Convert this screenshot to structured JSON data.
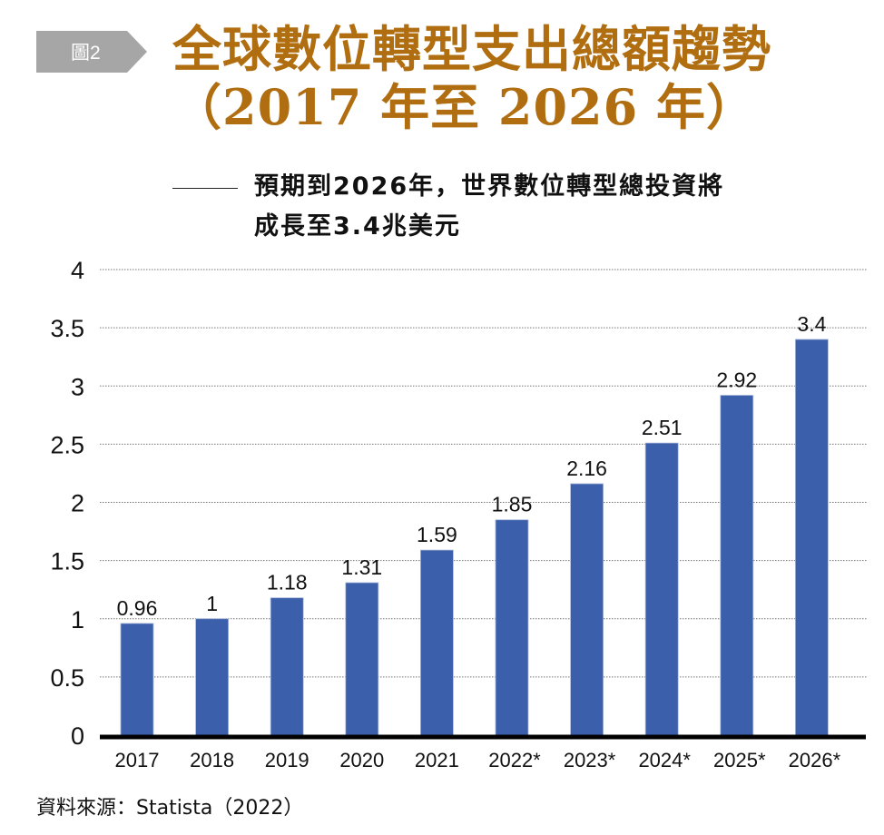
{
  "figure_tag": "圖2",
  "title": {
    "line1": "全球數位轉型支出總額趨勢",
    "line2": "（2017 年至 2026 年）"
  },
  "subtitle": {
    "line1": "預期到2026年，世界數位轉型總投資將",
    "line2": "成長至3.4兆美元"
  },
  "source": "資料來源：Statista（2022）",
  "colors": {
    "title": "#b06e10",
    "bar": "#3b5faa",
    "tag_bg": "#a6a6a6",
    "axis": "#000000"
  },
  "chart_data": {
    "type": "bar",
    "title": "全球數位轉型支出總額趨勢（2017 年至 2026 年）",
    "xlabel": "",
    "ylabel": "",
    "categories": [
      "2017",
      "2018",
      "2019",
      "2020",
      "2021",
      "2022*",
      "2023*",
      "2024*",
      "2025*",
      "2026*"
    ],
    "values": [
      0.96,
      1,
      1.18,
      1.31,
      1.59,
      1.85,
      2.16,
      2.51,
      2.92,
      3.4
    ],
    "value_labels": [
      "0.96",
      "1",
      "1.18",
      "1.31",
      "1.59",
      "1.85",
      "2.16",
      "2.51",
      "2.92",
      "3.4"
    ],
    "ylim": [
      0,
      4
    ],
    "yticks": [
      0,
      0.5,
      1,
      1.5,
      2,
      2.5,
      3,
      3.5,
      4
    ],
    "ytick_labels": [
      "0",
      "0.5",
      "1",
      "1.5",
      "2",
      "2.5",
      "3",
      "3.5",
      "4"
    ],
    "grid": true,
    "legend": "none"
  }
}
